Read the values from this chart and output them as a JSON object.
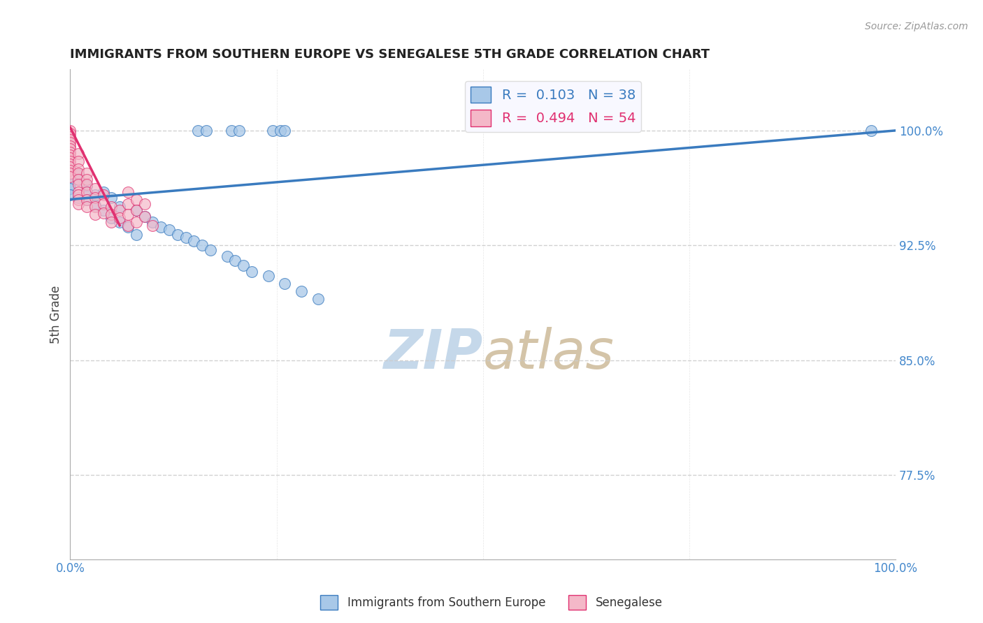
{
  "title": "IMMIGRANTS FROM SOUTHERN EUROPE VS SENEGALESE 5TH GRADE CORRELATION CHART",
  "source": "Source: ZipAtlas.com",
  "ylabel": "5th Grade",
  "legend_blue_r": "0.103",
  "legend_blue_n": "38",
  "legend_pink_r": "0.494",
  "legend_pink_n": "54",
  "blue_color": "#a8c8e8",
  "pink_color": "#f4b8c8",
  "trendline_blue_color": "#3a7bbf",
  "trendline_pink_color": "#e03070",
  "grid_color": "#cccccc",
  "tick_color": "#4488cc",
  "title_color": "#222222",
  "watermark_zip_color": "#c5d5e5",
  "watermark_atlas_color": "#d8c8b8",
  "source_color": "#999999",
  "yticks": [
    0.775,
    0.85,
    0.925,
    1.0
  ],
  "ytick_labels": [
    "77.5%",
    "85.0%",
    "92.5%",
    "100.0%"
  ],
  "xlim": [
    0.0,
    1.0
  ],
  "ylim": [
    0.72,
    1.04
  ],
  "blue_scatter_x": [
    0.0,
    0.0,
    0.0,
    0.01,
    0.01,
    0.01,
    0.02,
    0.02,
    0.02,
    0.03,
    0.03,
    0.04,
    0.04,
    0.05,
    0.05,
    0.06,
    0.06,
    0.07,
    0.08,
    0.08,
    0.09,
    0.1,
    0.11,
    0.12,
    0.13,
    0.14,
    0.15,
    0.16,
    0.17,
    0.19,
    0.2,
    0.21,
    0.22,
    0.24,
    0.26,
    0.28,
    0.3,
    0.97
  ],
  "blue_scatter_y": [
    0.965,
    0.962,
    0.958,
    0.971,
    0.968,
    0.956,
    0.964,
    0.96,
    0.955,
    0.958,
    0.951,
    0.96,
    0.948,
    0.956,
    0.943,
    0.95,
    0.94,
    0.937,
    0.948,
    0.932,
    0.944,
    0.94,
    0.937,
    0.935,
    0.932,
    0.93,
    0.928,
    0.925,
    0.922,
    0.918,
    0.915,
    0.912,
    0.908,
    0.905,
    0.9,
    0.895,
    0.89,
    1.0
  ],
  "blue_scatter_x2": [
    0.155,
    0.165,
    0.195,
    0.205,
    0.245,
    0.255,
    0.26
  ],
  "blue_scatter_y2": [
    1.0,
    1.0,
    1.0,
    1.0,
    1.0,
    1.0,
    1.0
  ],
  "pink_scatter_x": [
    0.0,
    0.0,
    0.0,
    0.0,
    0.0,
    0.0,
    0.0,
    0.0,
    0.0,
    0.0,
    0.0,
    0.0,
    0.0,
    0.0,
    0.0,
    0.0,
    0.01,
    0.01,
    0.01,
    0.01,
    0.01,
    0.01,
    0.01,
    0.01,
    0.01,
    0.01,
    0.02,
    0.02,
    0.02,
    0.02,
    0.02,
    0.02,
    0.03,
    0.03,
    0.03,
    0.03,
    0.04,
    0.04,
    0.04,
    0.05,
    0.05,
    0.05,
    0.06,
    0.06,
    0.07,
    0.07,
    0.07,
    0.07,
    0.08,
    0.08,
    0.08,
    0.09,
    0.09,
    0.1
  ],
  "pink_scatter_y": [
    1.0,
    0.998,
    0.996,
    0.994,
    0.992,
    0.99,
    0.988,
    0.986,
    0.984,
    0.982,
    0.98,
    0.978,
    0.976,
    0.974,
    0.972,
    0.97,
    0.985,
    0.98,
    0.975,
    0.972,
    0.968,
    0.965,
    0.96,
    0.958,
    0.955,
    0.952,
    0.972,
    0.968,
    0.965,
    0.96,
    0.955,
    0.95,
    0.962,
    0.956,
    0.95,
    0.945,
    0.958,
    0.952,
    0.946,
    0.95,
    0.945,
    0.94,
    0.948,
    0.943,
    0.96,
    0.952,
    0.945,
    0.938,
    0.955,
    0.948,
    0.94,
    0.952,
    0.944,
    0.938
  ],
  "blue_trend_x": [
    0.0,
    1.0
  ],
  "blue_trend_y": [
    0.955,
    1.0
  ],
  "pink_trend_x": [
    0.0,
    0.06
  ],
  "pink_trend_y": [
    1.002,
    0.938
  ],
  "legend_box_color": "#f8f8ff",
  "legend_box_edge": "#dddddd"
}
